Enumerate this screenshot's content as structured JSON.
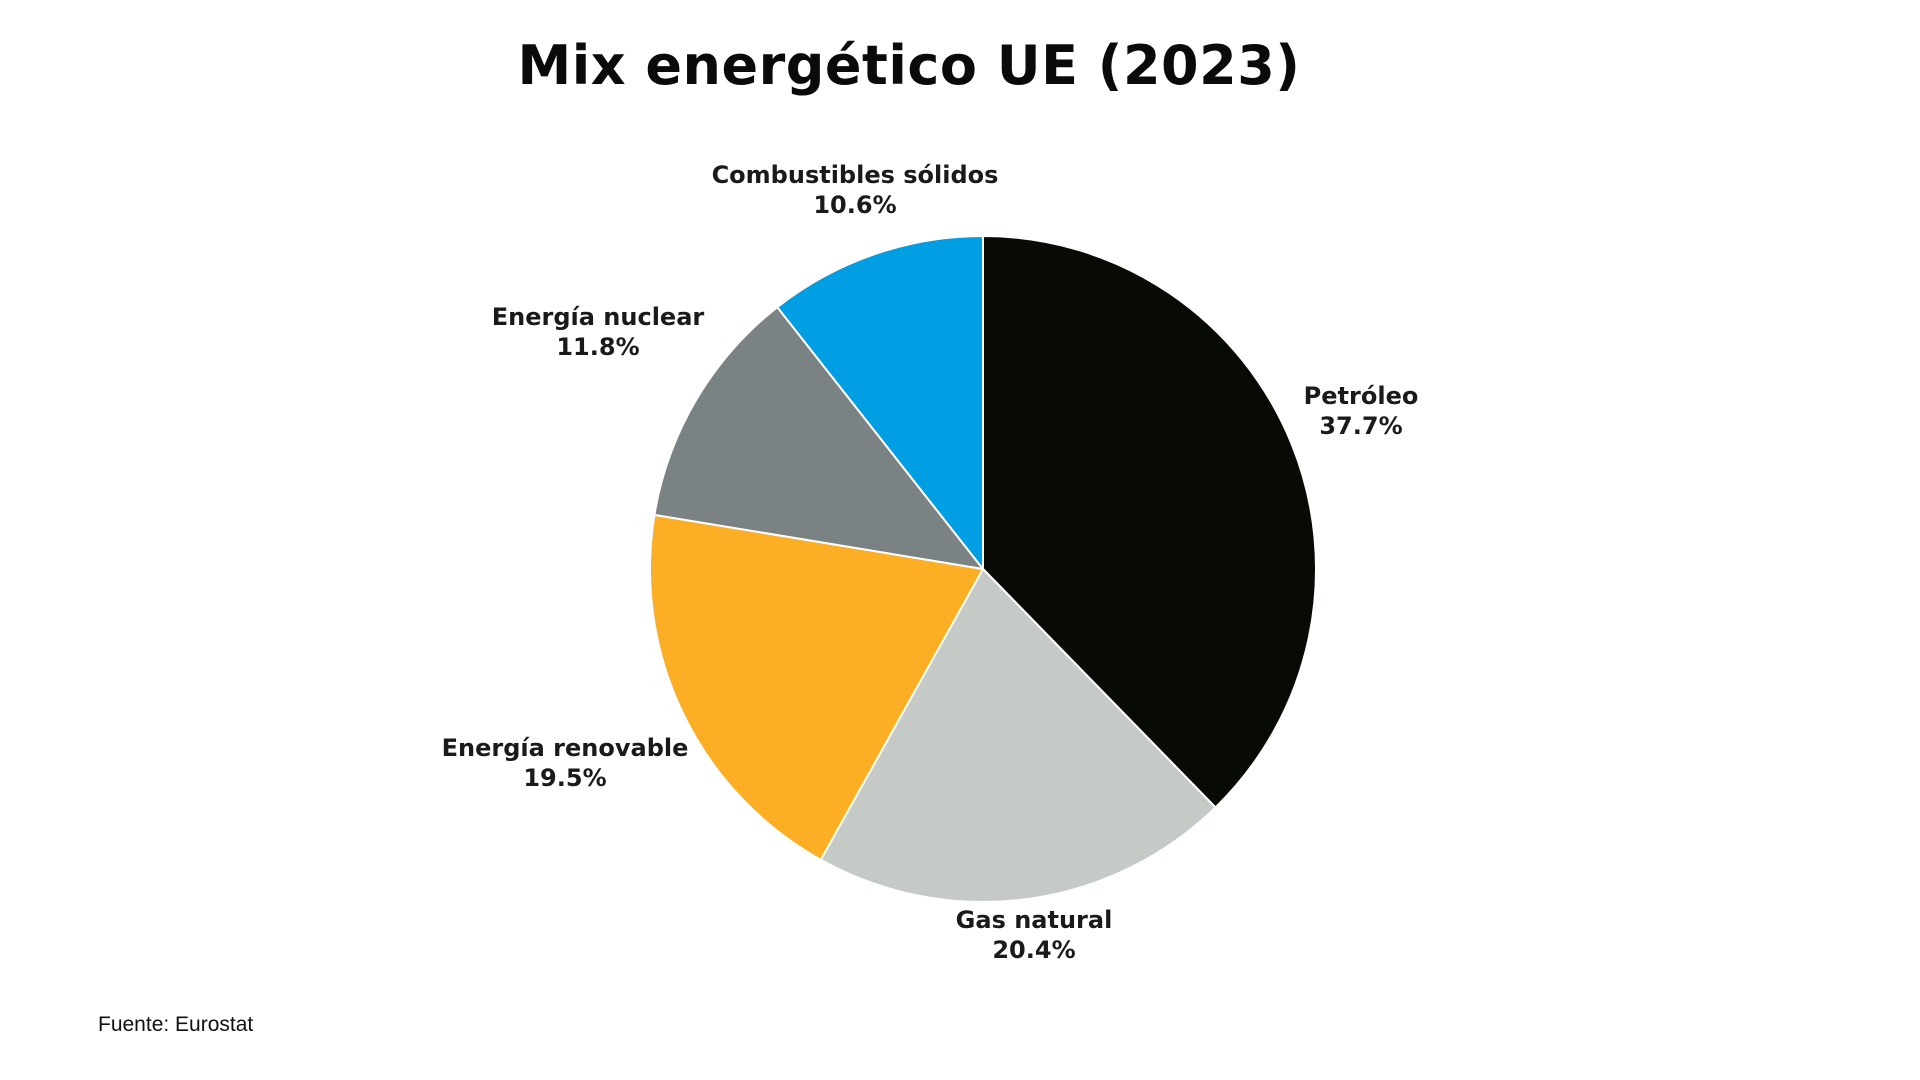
{
  "chart_data": {
    "type": "pie",
    "title": "Mix energético UE (2023)",
    "slices": [
      {
        "label": "Petróleo",
        "value": 37.7,
        "value_label": "37.7%",
        "color": "#080a06"
      },
      {
        "label": "Gas natural",
        "value": 20.4,
        "value_label": "20.4%",
        "color": "#c5cac6"
      },
      {
        "label": "Energía renovable",
        "value": 19.5,
        "value_label": "19.5%",
        "color": "#fcae24"
      },
      {
        "label": "Energía nuclear",
        "value": 11.8,
        "value_label": "11.8%",
        "color": "#7b8283"
      },
      {
        "label": "Combustibles sólidos",
        "value": 10.6,
        "value_label": "10.6%",
        "color": "#009ee2"
      }
    ],
    "start_angle": "12 o'clock",
    "direction": "clockwise",
    "legend": "none"
  },
  "source": "Fuente: Eurostat"
}
